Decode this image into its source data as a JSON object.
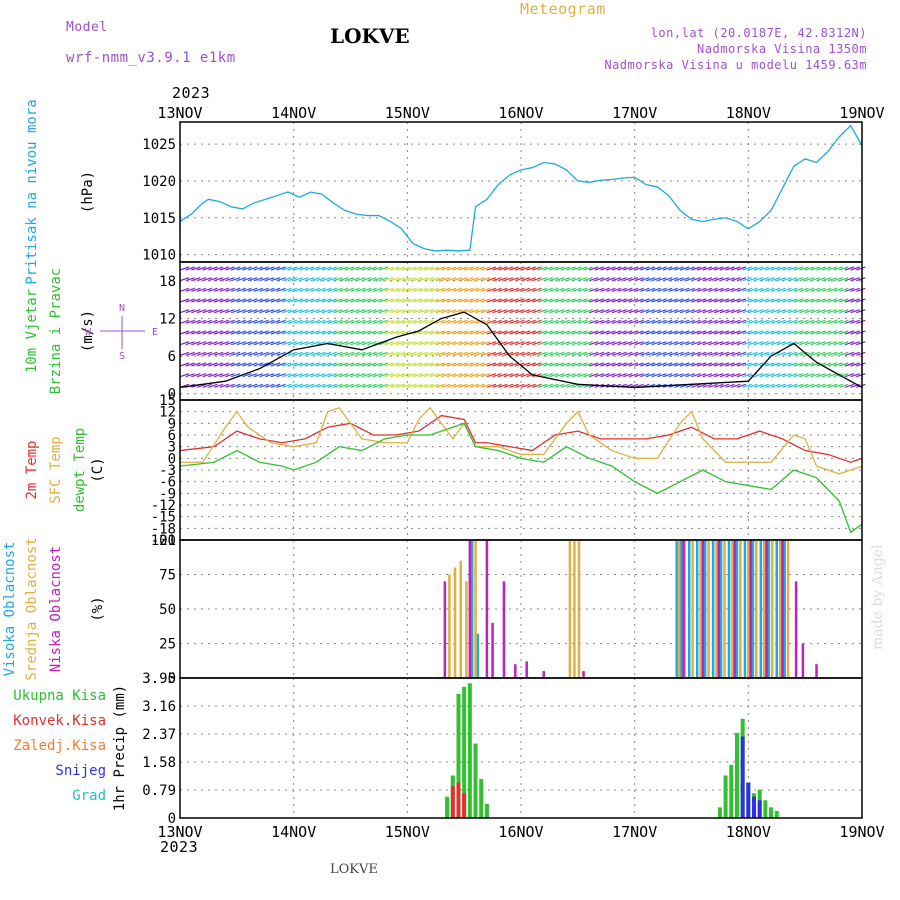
{
  "header": {
    "model_label": "Model",
    "model_name": "wrf-nmm_v3.9.1 e1km",
    "station": "LOKVE",
    "product": "Meteogram",
    "lonlat": "lon,lat (20.0187E, 42.8312N)",
    "altitude": "Nadmorska Visina 1350m",
    "model_altitude": "Nadmorska Visina u modelu 1459.63m",
    "footer_station": "LOKVE",
    "credit": "made by Angel",
    "colors": {
      "model": "#a050d0",
      "product": "#e0b040",
      "station": "#000000"
    }
  },
  "time_axis": {
    "year": "2023",
    "ticks": [
      "13NOV",
      "14NOV",
      "15NOV",
      "16NOV",
      "17NOV",
      "18NOV",
      "19NOV"
    ]
  },
  "chart_data": [
    {
      "id": "pressure",
      "type": "line",
      "ylabel": [
        "Pritisak na nivou mora",
        "(hPa)"
      ],
      "ylim": [
        1009,
        1028
      ],
      "yticks": [
        1010,
        1015,
        1020,
        1025
      ],
      "grid": true,
      "series": [
        {
          "color": "#20a8e0",
          "x": [
            0,
            0.1,
            0.2,
            0.25,
            0.35,
            0.45,
            0.55,
            0.65,
            0.75,
            0.85,
            0.95,
            1.05,
            1.15,
            1.25,
            1.35,
            1.45,
            1.55,
            1.65,
            1.75,
            1.85,
            1.95,
            2.05,
            2.15,
            2.25,
            2.35,
            2.45,
            2.55,
            2.6,
            2.7,
            2.8,
            2.9,
            3.0,
            3.1,
            3.2,
            3.3,
            3.4,
            3.5,
            3.6,
            3.7,
            3.8,
            3.9,
            4.0,
            4.1,
            4.2,
            4.3,
            4.4,
            4.5,
            4.6,
            4.7,
            4.8,
            4.9,
            5.0,
            5.1,
            5.2,
            5.3,
            5.4,
            5.5,
            5.6,
            5.7,
            5.8,
            5.9,
            6.0
          ],
          "y": [
            1014.5,
            1015.5,
            1017,
            1017.5,
            1017.2,
            1016.5,
            1016.2,
            1017,
            1017.5,
            1018,
            1018.5,
            1017.8,
            1018.5,
            1018.2,
            1017,
            1016,
            1015.5,
            1015.3,
            1015.3,
            1014.5,
            1013.5,
            1011.5,
            1010.8,
            1010.5,
            1010.6,
            1010.5,
            1010.6,
            1016.5,
            1017.5,
            1019.5,
            1020.8,
            1021.5,
            1021.8,
            1022.5,
            1022.3,
            1021.5,
            1020,
            1019.8,
            1020.1,
            1020.2,
            1020.4,
            1020.5,
            1019.5,
            1019.2,
            1018,
            1016,
            1014.8,
            1014.5,
            1014.8,
            1015,
            1014.5,
            1013.5,
            1014.5,
            1016,
            1019,
            1022,
            1023,
            1022.5,
            1024,
            1026,
            1027.5,
            1024.8
          ]
        }
      ]
    },
    {
      "id": "wind",
      "type": "line",
      "ylabel": [
        "10m Vjetar",
        "Brzina i Pravac",
        "(m/s)"
      ],
      "compass": {
        "n": "N",
        "s": "S",
        "e": "E",
        "w": "W"
      },
      "ylim": [
        -1,
        21
      ],
      "yticks": [
        0,
        6,
        12,
        18
      ],
      "grid": true,
      "series": [
        {
          "name": "speed",
          "color": "#000000",
          "x": [
            0,
            0.4,
            0.7,
            1.0,
            1.3,
            1.6,
            1.9,
            2.1,
            2.3,
            2.5,
            2.7,
            2.9,
            3.1,
            3.5,
            4.0,
            4.5,
            5.0,
            5.2,
            5.4,
            5.6,
            5.8,
            6.0
          ],
          "y": [
            1,
            2,
            4,
            7,
            8,
            7,
            9,
            10,
            12,
            13,
            11,
            6,
            3,
            1.5,
            1,
            1.5,
            2,
            6,
            8,
            5,
            3,
            1
          ]
        }
      ]
    },
    {
      "id": "temperature",
      "type": "line",
      "ylabel": [
        "2m Temp",
        "SFC Temp",
        "dewpt Temp",
        "(C)"
      ],
      "ylim": [
        -21,
        15
      ],
      "yticks": [
        15,
        12,
        9,
        6,
        3,
        0,
        -3,
        -6,
        -9,
        -12,
        -15,
        -18,
        -21
      ],
      "grid": true,
      "series": [
        {
          "name": "2m Temp",
          "color": "#e03030",
          "x": [
            0,
            0.3,
            0.5,
            0.7,
            0.9,
            1.1,
            1.3,
            1.5,
            1.7,
            1.9,
            2.1,
            2.3,
            2.5,
            2.6,
            2.7,
            2.9,
            3.1,
            3.3,
            3.5,
            3.7,
            3.9,
            4.1,
            4.3,
            4.5,
            4.7,
            4.9,
            5.1,
            5.3,
            5.5,
            5.7,
            5.9,
            6.0
          ],
          "y": [
            2,
            3,
            7,
            5,
            4,
            5,
            8,
            9,
            6,
            6,
            7,
            11,
            10,
            4,
            4,
            3,
            2,
            6,
            7,
            5,
            5,
            5,
            6,
            8,
            5,
            5,
            7,
            5,
            2,
            1,
            -1,
            0
          ]
        },
        {
          "name": "SFC Temp",
          "color": "#e0b040",
          "x": [
            0,
            0.2,
            0.4,
            0.5,
            0.6,
            0.8,
            1.0,
            1.2,
            1.3,
            1.4,
            1.6,
            1.8,
            2.0,
            2.1,
            2.2,
            2.4,
            2.5,
            2.6,
            2.8,
            3.0,
            3.2,
            3.4,
            3.5,
            3.6,
            3.8,
            4.0,
            4.2,
            4.4,
            4.5,
            4.6,
            4.8,
            5.0,
            5.2,
            5.4,
            5.5,
            5.6,
            5.8,
            6.0
          ],
          "y": [
            -1,
            -1,
            8,
            12,
            8,
            4,
            3,
            4,
            12,
            13,
            5,
            4,
            4,
            10,
            13,
            5,
            9,
            3,
            3,
            1,
            1,
            9,
            12,
            6,
            2,
            0,
            0,
            9,
            12,
            5,
            -1,
            -1,
            -1,
            6,
            5,
            -2,
            -4,
            -2
          ]
        },
        {
          "name": "dewpt Temp",
          "color": "#30c030",
          "x": [
            0,
            0.3,
            0.5,
            0.7,
            0.9,
            1.0,
            1.2,
            1.4,
            1.6,
            1.8,
            2.0,
            2.2,
            2.4,
            2.5,
            2.6,
            2.8,
            3.0,
            3.2,
            3.4,
            3.6,
            3.8,
            4.0,
            4.2,
            4.4,
            4.6,
            4.8,
            5.0,
            5.2,
            5.4,
            5.6,
            5.8,
            5.9,
            6.0
          ],
          "y": [
            -2,
            -1,
            2,
            -1,
            -2,
            -3,
            -1,
            3,
            2,
            5,
            6,
            6,
            8,
            9,
            3,
            2,
            0,
            -1,
            3,
            0,
            -2,
            -6,
            -9,
            -6,
            -3,
            -6,
            -7,
            -8,
            -3,
            -5,
            -11,
            -19,
            -17
          ]
        }
      ]
    },
    {
      "id": "clouds",
      "type": "bar",
      "ylabel": [
        "Visoka Oblacnost",
        "Srednja Oblacnost",
        "Niska Oblacnost",
        "(%)"
      ],
      "ylim": [
        0,
        100
      ],
      "yticks": [
        0,
        25,
        50,
        75,
        100
      ],
      "grid": true,
      "series": [
        {
          "name": "Visoka Oblacnost",
          "color": "#20a8e0",
          "x": [
            2.57,
            2.62,
            4.37,
            4.41,
            4.48,
            4.55,
            4.62,
            4.69,
            4.76,
            4.83,
            4.9,
            4.97,
            5.04,
            5.11,
            5.18,
            5.25,
            5.32
          ],
          "y": [
            100,
            32,
            100,
            100,
            100,
            100,
            100,
            100,
            100,
            100,
            100,
            100,
            100,
            100,
            100,
            100,
            100
          ]
        },
        {
          "name": "Srednja Oblacnost",
          "color": "#e0b040",
          "x": [
            2.37,
            2.42,
            2.47,
            2.52,
            2.6,
            3.43,
            3.47,
            3.51,
            4.39,
            4.44,
            4.51,
            4.58,
            4.65,
            4.72,
            4.79,
            4.86,
            4.93,
            5.0,
            5.07,
            5.14,
            5.21,
            5.28,
            5.35
          ],
          "y": [
            75,
            80,
            85,
            70,
            100,
            100,
            100,
            100,
            100,
            100,
            100,
            100,
            100,
            100,
            100,
            100,
            100,
            100,
            100,
            100,
            100,
            100,
            100
          ]
        },
        {
          "name": "Niska Oblacnost",
          "color": "#c020c0",
          "x": [
            2.33,
            2.55,
            2.7,
            2.75,
            2.85,
            2.95,
            3.05,
            3.2,
            3.55,
            4.43,
            4.6,
            4.74,
            4.88,
            5.02,
            5.16,
            5.3,
            5.42,
            5.48,
            5.6
          ],
          "y": [
            70,
            100,
            100,
            40,
            70,
            10,
            12,
            5,
            5,
            100,
            100,
            100,
            100,
            100,
            100,
            100,
            70,
            25,
            10
          ]
        }
      ]
    },
    {
      "id": "precip",
      "type": "bar",
      "ylabel": [
        "Ukupna Kisa",
        "Konvek.Kisa",
        "Zaledj.Kisa",
        "Snijeg",
        "Grad",
        "1hr Precip (mm)"
      ],
      "legend_colors": [
        "#30c030",
        "#e03030",
        "#f08030",
        "#3030e0",
        "#20c0c0"
      ],
      "ylim": [
        0,
        3.95
      ],
      "yticks": [
        0,
        0.79,
        1.58,
        2.37,
        3.16,
        3.95
      ],
      "ytick_labels": [
        "0",
        "0.79",
        "1.58",
        "2.37",
        "3.16",
        "3.95"
      ],
      "grid": true,
      "series": [
        {
          "name": "Ukupna Kisa",
          "color": "#30c030",
          "x": [
            2.35,
            2.4,
            2.45,
            2.5,
            2.55,
            2.6,
            2.65,
            2.7,
            4.75,
            4.8,
            4.85,
            4.9,
            4.95,
            5.0,
            5.05,
            5.1,
            5.15,
            5.2,
            5.25
          ],
          "y": [
            0.6,
            1.2,
            3.5,
            3.7,
            3.8,
            2.1,
            1.1,
            0.4,
            0.3,
            1.2,
            1.5,
            2.4,
            2.8,
            1.0,
            0.7,
            0.8,
            0.5,
            0.3,
            0.2
          ]
        },
        {
          "name": "Konvek.Kisa",
          "color": "#e03030",
          "x": [
            2.4,
            2.45,
            2.5
          ],
          "y": [
            0.9,
            1.0,
            0.7
          ]
        },
        {
          "name": "Snijeg",
          "color": "#3030e0",
          "x": [
            4.95,
            5.0,
            5.05,
            5.1
          ],
          "y": [
            2.3,
            1.0,
            0.6,
            0.5
          ]
        }
      ]
    }
  ]
}
